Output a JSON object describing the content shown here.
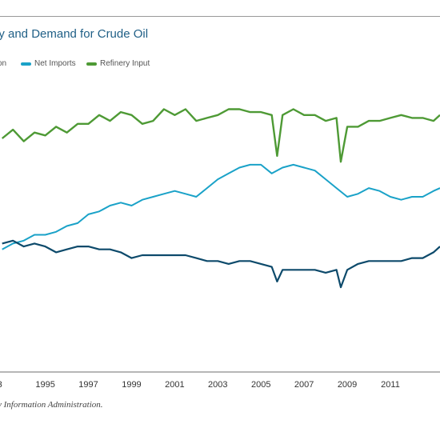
{
  "title": "ly and Demand for Crude Oil",
  "source_note": "y Information Administration.",
  "legend": [
    {
      "label": "on",
      "color": "#0d4a6b"
    },
    {
      "label": "Net Imports",
      "color": "#1aa2c8"
    },
    {
      "label": "Refinery Input",
      "color": "#4e9a35"
    }
  ],
  "chart_data": {
    "type": "line",
    "title": "ly and Demand for Crude Oil",
    "x_tick_labels": [
      "3",
      "1995",
      "1997",
      "1999",
      "2001",
      "2003",
      "2005",
      "2007",
      "2009",
      "2011"
    ],
    "xlim": [
      1992.9,
      2013.3
    ],
    "ylim": [
      0,
      1
    ],
    "grid": false,
    "legend_placement": "top-left",
    "series": [
      {
        "name": "on",
        "color": "#0d4a6b",
        "x": [
          1993.0,
          1993.5,
          1994.0,
          1994.5,
          1995.0,
          1995.5,
          1996.0,
          1996.5,
          1997.0,
          1997.5,
          1998.0,
          1998.5,
          1999.0,
          1999.5,
          2000.0,
          2000.5,
          2001.0,
          2001.5,
          2002.0,
          2002.5,
          2003.0,
          2003.5,
          2004.0,
          2004.5,
          2005.0,
          2005.5,
          2005.75,
          2006.0,
          2006.5,
          2007.0,
          2007.5,
          2008.0,
          2008.5,
          2008.7,
          2009.0,
          2009.5,
          2010.0,
          2010.5,
          2011.0,
          2011.5,
          2012.0,
          2012.5,
          2013.0,
          2013.3
        ],
        "values": [
          0.44,
          0.45,
          0.43,
          0.44,
          0.43,
          0.41,
          0.42,
          0.43,
          0.43,
          0.42,
          0.42,
          0.41,
          0.39,
          0.4,
          0.4,
          0.4,
          0.4,
          0.4,
          0.39,
          0.38,
          0.38,
          0.37,
          0.38,
          0.38,
          0.37,
          0.36,
          0.31,
          0.35,
          0.35,
          0.35,
          0.35,
          0.34,
          0.35,
          0.29,
          0.35,
          0.37,
          0.38,
          0.38,
          0.38,
          0.38,
          0.39,
          0.39,
          0.41,
          0.43
        ]
      },
      {
        "name": "Net Imports",
        "color": "#1aa2c8",
        "x": [
          1993.0,
          1993.5,
          1994.0,
          1994.5,
          1995.0,
          1995.5,
          1996.0,
          1996.5,
          1997.0,
          1997.5,
          1998.0,
          1998.5,
          1999.0,
          1999.5,
          2000.0,
          2000.5,
          2001.0,
          2001.5,
          2002.0,
          2002.5,
          2003.0,
          2003.5,
          2004.0,
          2004.5,
          2005.0,
          2005.5,
          2006.0,
          2006.5,
          2007.0,
          2007.5,
          2008.0,
          2008.5,
          2009.0,
          2009.5,
          2010.0,
          2010.5,
          2011.0,
          2011.5,
          2012.0,
          2012.5,
          2013.0,
          2013.3
        ],
        "values": [
          0.42,
          0.44,
          0.45,
          0.47,
          0.47,
          0.48,
          0.5,
          0.51,
          0.54,
          0.55,
          0.57,
          0.58,
          0.57,
          0.59,
          0.6,
          0.61,
          0.62,
          0.61,
          0.6,
          0.63,
          0.66,
          0.68,
          0.7,
          0.71,
          0.71,
          0.68,
          0.7,
          0.71,
          0.7,
          0.69,
          0.66,
          0.63,
          0.6,
          0.61,
          0.63,
          0.62,
          0.6,
          0.59,
          0.6,
          0.6,
          0.62,
          0.63
        ]
      },
      {
        "name": "Refinery Input",
        "color": "#4e9a35",
        "x": [
          1993.0,
          1993.5,
          1994.0,
          1994.5,
          1995.0,
          1995.5,
          1996.0,
          1996.5,
          1997.0,
          1997.5,
          1998.0,
          1998.5,
          1999.0,
          1999.5,
          2000.0,
          2000.5,
          2001.0,
          2001.5,
          2002.0,
          2002.5,
          2003.0,
          2003.5,
          2004.0,
          2004.5,
          2005.0,
          2005.5,
          2005.75,
          2006.0,
          2006.5,
          2007.0,
          2007.5,
          2008.0,
          2008.5,
          2008.7,
          2009.0,
          2009.5,
          2010.0,
          2010.5,
          2011.0,
          2011.5,
          2012.0,
          2012.5,
          2013.0,
          2013.3
        ],
        "values": [
          0.8,
          0.83,
          0.79,
          0.82,
          0.81,
          0.84,
          0.82,
          0.85,
          0.85,
          0.88,
          0.86,
          0.89,
          0.88,
          0.85,
          0.86,
          0.9,
          0.88,
          0.9,
          0.86,
          0.87,
          0.88,
          0.9,
          0.9,
          0.89,
          0.89,
          0.88,
          0.74,
          0.88,
          0.9,
          0.88,
          0.88,
          0.86,
          0.87,
          0.72,
          0.84,
          0.84,
          0.86,
          0.86,
          0.87,
          0.88,
          0.87,
          0.87,
          0.86,
          0.88
        ]
      }
    ]
  }
}
